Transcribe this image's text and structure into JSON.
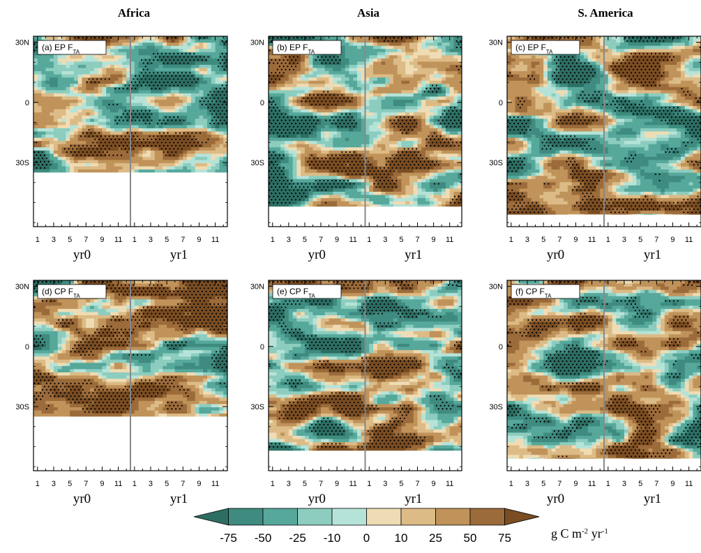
{
  "figure": {
    "region_titles": [
      "Africa",
      "Asia",
      "S. America"
    ],
    "units_label": "g C m",
    "units_sup1": "-2",
    "units_mid": " yr",
    "units_sup2": "-1"
  },
  "chart_data": {
    "type": "heatmap",
    "description_of_axes": "x = month (yr0 1-12, yr1 1-12), y = latitude",
    "x_tick_labels": [
      "1",
      "3",
      "5",
      "7",
      "9",
      "11",
      "1",
      "3",
      "5",
      "7",
      "9",
      "11"
    ],
    "x_group_labels": [
      "yr0",
      "yr1"
    ],
    "y_tick_labels": [
      "30N",
      "0",
      "30S"
    ],
    "colorbar": {
      "levels": [
        -75,
        -50,
        -25,
        -10,
        0,
        10,
        25,
        50,
        75
      ],
      "level_labels": [
        "-75",
        "-50",
        "-25",
        "-10",
        "0",
        "10",
        "25",
        "50",
        "75"
      ],
      "colors": [
        "#2d6e63",
        "#3f8b80",
        "#56a89b",
        "#8ccdbf",
        "#b6e3d8",
        "#efdcb4",
        "#dcbb86",
        "#c0935a",
        "#9c6b3a",
        "#7a4d22"
      ]
    },
    "panels": [
      {
        "id": "a",
        "label_prefix": "(a) EP F",
        "label_sub": "TA",
        "region": "Africa",
        "lat_south": -35
      },
      {
        "id": "b",
        "label_prefix": "(b) EP F",
        "label_sub": "TA",
        "region": "Asia",
        "lat_south": -52
      },
      {
        "id": "c",
        "label_prefix": "(c) EP F",
        "label_sub": "TA",
        "region": "S. America",
        "lat_south": -56
      },
      {
        "id": "d",
        "label_prefix": "(d) CP F",
        "label_sub": "TA",
        "region": "Africa",
        "lat_south": -35
      },
      {
        "id": "e",
        "label_prefix": "(e) CP F",
        "label_sub": "TA",
        "region": "Asia",
        "lat_south": -52
      },
      {
        "id": "f",
        "label_prefix": "(f) CP F",
        "label_sub": "TA",
        "region": "S. America",
        "lat_south": -56
      }
    ]
  }
}
